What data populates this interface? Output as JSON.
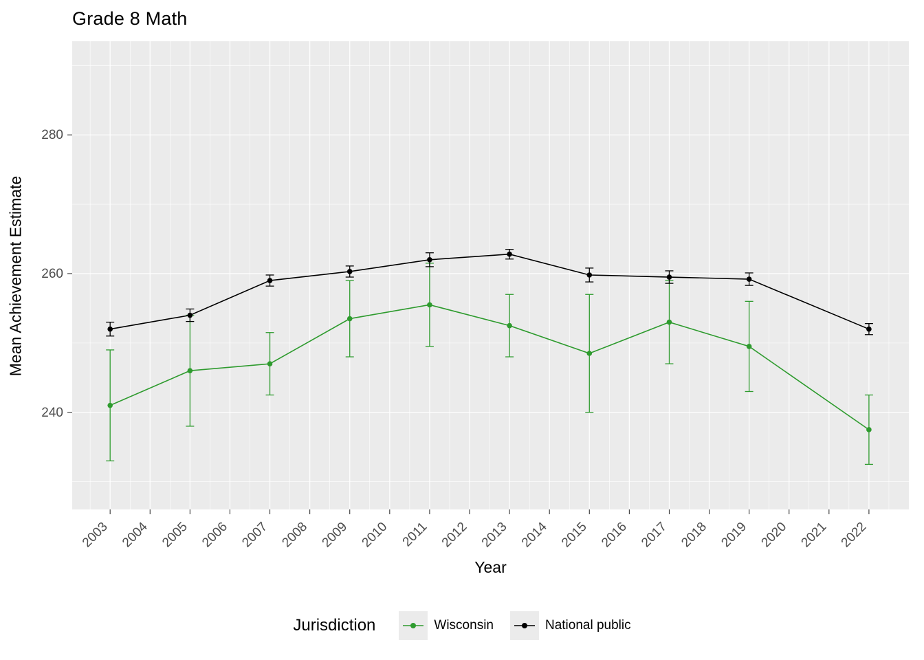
{
  "chart_data": {
    "type": "line",
    "title": "Grade 8 Math",
    "xlabel": "Year",
    "ylabel": "Mean Achievement Estimate",
    "x_ticks": [
      2003,
      2004,
      2005,
      2006,
      2007,
      2008,
      2009,
      2010,
      2011,
      2012,
      2013,
      2014,
      2015,
      2016,
      2017,
      2018,
      2019,
      2020,
      2021,
      2022
    ],
    "y_ticks": [
      240,
      260,
      280
    ],
    "y_minor_ticks": [
      230,
      250,
      270,
      290
    ],
    "xlim": [
      2002.05,
      2023.0
    ],
    "ylim": [
      226.0,
      293.5
    ],
    "grid": true,
    "panel_bg": "#EBEBEB",
    "grid_color": "#FFFFFF",
    "axis_text_color": "#4D4D4D",
    "tick_color": "#333333",
    "legend": {
      "title": "Jurisdiction",
      "position": "bottom",
      "key_bg": "#EBEBEB"
    },
    "series": [
      {
        "name": "Wisconsin",
        "color": "#2E9B2E",
        "marker": "circle",
        "x": [
          2003,
          2005,
          2007,
          2009,
          2011,
          2013,
          2015,
          2017,
          2019,
          2022
        ],
        "y": [
          241.0,
          246.0,
          247.0,
          253.5,
          255.5,
          252.5,
          248.5,
          253.0,
          249.5,
          237.5
        ],
        "err": [
          8.0,
          8.0,
          4.5,
          5.5,
          6.0,
          4.5,
          8.5,
          6.0,
          6.5,
          5.0
        ]
      },
      {
        "name": "National public",
        "color": "#000000",
        "marker": "circle",
        "x": [
          2003,
          2005,
          2007,
          2009,
          2011,
          2013,
          2015,
          2017,
          2019,
          2022
        ],
        "y": [
          252.0,
          254.0,
          259.0,
          260.3,
          262.0,
          262.8,
          259.8,
          259.5,
          259.2,
          252.0
        ],
        "err": [
          1.0,
          0.9,
          0.8,
          0.8,
          1.0,
          0.7,
          1.0,
          0.9,
          0.9,
          0.8
        ]
      }
    ]
  }
}
